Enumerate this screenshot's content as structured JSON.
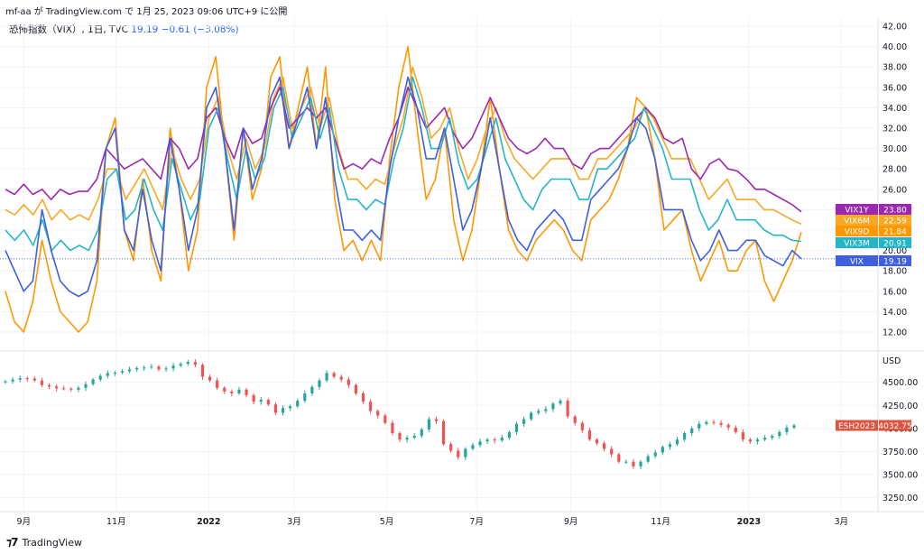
{
  "header": {
    "text": "mf-aa が TradingView.com で 1月 25, 2023 09:06 UTC+9 に公開"
  },
  "legend": {
    "symbol": "恐怖指数（VIX）, 1日, TVC",
    "price": "19.19",
    "change": "−0.61 (−3.08%)"
  },
  "brand": {
    "name": "TradingView"
  },
  "colors": {
    "VIX1Y": "#9c27b0",
    "VIX6M": "#f7a825",
    "VIX9D": "#ff9800",
    "VIX3M": "#26b5c6",
    "VIX": "#3d5fe0",
    "ES": "#e0533f",
    "candle_up": "#26a69a",
    "candle_down": "#ef5350"
  },
  "chart_data": [
    {
      "type": "line",
      "panel": "upper",
      "y_ticks": [
        "42.00",
        "40.00",
        "38.00",
        "36.00",
        "34.00",
        "32.00",
        "30.00",
        "28.00",
        "26.00",
        "24.00",
        "22.00",
        "20.00",
        "18.00",
        "16.00",
        "14.00",
        "12.00"
      ],
      "ylim": [
        10.5,
        42.8
      ],
      "x_labels": [
        "9月",
        "11月",
        "2022",
        "3月",
        "5月",
        "7月",
        "9月",
        "11月",
        "2023",
        "3月"
      ],
      "x_label_positions": [
        0.021,
        0.127,
        0.233,
        0.331,
        0.437,
        0.54,
        0.648,
        0.751,
        0.852,
        0.958
      ],
      "x_range": [
        0,
        1
      ],
      "series": [
        {
          "name": "VIX1Y",
          "last": "23.80",
          "values": [
            26,
            25.5,
            26.5,
            25.5,
            26,
            25,
            26,
            25.5,
            25.8,
            25.8,
            27,
            30,
            29,
            28,
            28.5,
            29,
            28,
            27,
            31,
            30,
            28,
            29,
            33,
            34,
            31,
            29,
            32,
            30.5,
            31,
            34,
            36,
            32,
            33,
            34,
            33,
            34,
            31,
            28,
            28.5,
            28,
            29,
            28.5,
            31,
            33,
            36,
            34,
            32,
            33,
            34,
            31.5,
            30,
            31,
            33,
            35,
            33,
            31,
            30,
            29.5,
            30,
            31,
            30,
            30,
            28.5,
            28,
            29.5,
            30,
            30,
            31,
            32,
            33,
            34,
            33,
            31,
            30.5,
            31,
            28,
            27,
            28.5,
            29,
            28,
            27.8,
            27,
            26,
            26,
            25.5,
            25,
            24.5,
            23.8
          ]
        },
        {
          "name": "VIX6M",
          "last": "22.59",
          "values": [
            24,
            23.5,
            24.5,
            23.5,
            25,
            23,
            24,
            23,
            23.5,
            23,
            25,
            28,
            28,
            25,
            26.5,
            28,
            26,
            24,
            30,
            27,
            25,
            27,
            33,
            35,
            30,
            27,
            31,
            28,
            30,
            35,
            37,
            32,
            34,
            36,
            32,
            35,
            30,
            27,
            27,
            26,
            27,
            26.5,
            30,
            33,
            38,
            35,
            31,
            32,
            34,
            30,
            27,
            29,
            32,
            34,
            31,
            29,
            28,
            27,
            28,
            29,
            29,
            29,
            27,
            27,
            29,
            29,
            30,
            31,
            32,
            34,
            33,
            31,
            29,
            29,
            29,
            27,
            25,
            26,
            27,
            25,
            25,
            25,
            24,
            24,
            23.5,
            23,
            22.6
          ]
        },
        {
          "name": "VIX9D",
          "last": "21.84",
          "values": [
            16,
            13,
            12,
            15,
            21,
            17,
            14,
            13,
            12,
            13,
            17,
            30,
            33,
            22,
            19,
            27,
            20,
            17,
            32,
            26,
            18,
            22,
            36,
            39,
            30,
            21,
            32,
            25,
            28,
            37,
            39,
            30,
            34,
            38,
            30,
            38,
            25,
            20,
            21,
            19,
            21,
            19,
            29,
            36,
            40,
            32,
            25,
            27,
            32,
            23,
            19,
            22,
            28,
            35,
            28,
            22,
            20,
            19,
            21,
            22,
            23,
            22,
            20,
            19,
            23,
            24,
            25,
            27,
            30,
            35,
            34,
            29,
            22,
            23,
            24,
            20,
            17,
            19,
            21,
            18,
            18,
            20,
            21,
            17,
            15,
            17,
            19,
            21.8
          ]
        },
        {
          "name": "VIX3M",
          "last": "20.91",
          "values": [
            22,
            21,
            22,
            20.5,
            23,
            20,
            21,
            20,
            20.5,
            20,
            22,
            27,
            28,
            23,
            24,
            27,
            24,
            22,
            29,
            26,
            23,
            25,
            32,
            34,
            29,
            25,
            30,
            27,
            29,
            34,
            36,
            31,
            33,
            35,
            31,
            34,
            28,
            25,
            25,
            24,
            25,
            24.5,
            29,
            32,
            37,
            34,
            30,
            30,
            33,
            28.5,
            26,
            27,
            30,
            33,
            29,
            27,
            25,
            24,
            26,
            27,
            27,
            27,
            25,
            25,
            28,
            28,
            29,
            30,
            31,
            34,
            32,
            30,
            27,
            27,
            27,
            24,
            22,
            23,
            25,
            23,
            23,
            23,
            22,
            21.5,
            21.5,
            21,
            20.9
          ]
        },
        {
          "name": "VIX",
          "last": "19.19",
          "values": [
            20,
            18,
            16,
            17,
            24,
            20,
            17,
            16,
            15.5,
            16,
            19,
            30,
            32,
            22,
            20,
            26,
            21,
            18,
            31,
            26,
            20,
            24,
            34,
            36,
            30,
            22,
            32,
            26,
            29,
            35,
            37,
            30,
            33,
            36,
            30,
            35,
            27,
            22,
            22,
            21,
            22,
            21,
            28,
            33,
            37,
            34,
            29,
            29,
            32,
            27,
            22,
            24,
            28,
            33,
            28,
            23,
            21,
            20,
            22,
            23,
            24,
            23,
            21,
            21,
            25,
            26,
            27,
            28,
            30,
            33,
            32,
            29,
            24,
            24,
            24,
            21,
            19,
            20,
            22,
            20,
            20,
            21,
            21,
            19.5,
            19,
            18.5,
            20,
            19.19
          ]
        }
      ]
    },
    {
      "type": "candlestick",
      "panel": "lower",
      "symbol": "ESH2023",
      "unit": "USD",
      "last": "4032.75",
      "y_ticks": [
        "4500.00",
        "4250.00",
        "4000.00",
        "3750.00",
        "3500.00",
        "3250.00"
      ],
      "ylim": [
        3100,
        4800
      ],
      "closes": [
        4510,
        4530,
        4545,
        4540,
        4520,
        4470,
        4455,
        4435,
        4430,
        4420,
        4440,
        4480,
        4530,
        4570,
        4600,
        4605,
        4620,
        4640,
        4655,
        4660,
        4670,
        4640,
        4650,
        4680,
        4700,
        4720,
        4690,
        4560,
        4520,
        4440,
        4400,
        4380,
        4420,
        4360,
        4290,
        4310,
        4260,
        4170,
        4220,
        4240,
        4300,
        4380,
        4450,
        4520,
        4600,
        4560,
        4530,
        4470,
        4380,
        4290,
        4190,
        4140,
        4060,
        3950,
        3880,
        3900,
        3920,
        3990,
        4100,
        4080,
        3830,
        3760,
        3690,
        3780,
        3820,
        3860,
        3880,
        3870,
        3900,
        3960,
        4050,
        4100,
        4170,
        4190,
        4210,
        4270,
        4300,
        4130,
        4060,
        3980,
        3880,
        3840,
        3780,
        3720,
        3640,
        3640,
        3590,
        3640,
        3700,
        3740,
        3800,
        3830,
        3880,
        3950,
        4000,
        4050,
        4070,
        4060,
        4040,
        4010,
        3960,
        3880,
        3860,
        3880,
        3900,
        3920,
        3960,
        4010,
        4032.75
      ]
    }
  ]
}
